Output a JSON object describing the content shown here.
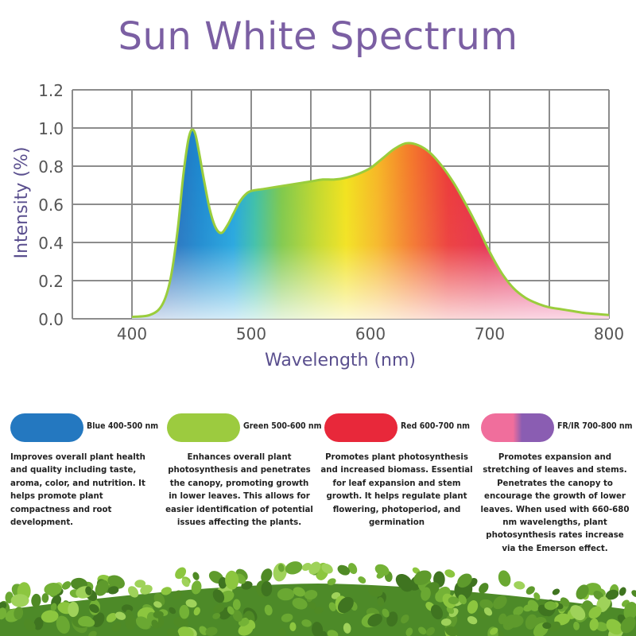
{
  "title": "Sun White Spectrum",
  "chart_data": {
    "type": "area",
    "title": "",
    "xlabel": "Wavelength (nm)",
    "ylabel": "Intensity (%)",
    "xlim": [
      350,
      800
    ],
    "ylim": [
      0,
      1.2
    ],
    "x_ticks": [
      400,
      500,
      600,
      700,
      800
    ],
    "y_ticks": [
      "0.0",
      "0.2",
      "0.4",
      "0.6",
      "0.8",
      "1.0",
      "1.2"
    ],
    "grid": true,
    "fill": "visible-spectrum gradient",
    "line_color": "#9acd3c",
    "series": [
      {
        "x": [
          400,
          415,
          425,
          432,
          438,
          443,
          447,
          450,
          453,
          456,
          460,
          465,
          470,
          475,
          480,
          485,
          490,
          495,
          500,
          510,
          520,
          530,
          540,
          550,
          560,
          570,
          580,
          590,
          600,
          610,
          620,
          630,
          640,
          650,
          660,
          670,
          680,
          690,
          700,
          710,
          720,
          730,
          740,
          750,
          760,
          770,
          780,
          790,
          800
        ],
        "y": [
          0.01,
          0.02,
          0.07,
          0.2,
          0.45,
          0.75,
          0.93,
          0.99,
          0.97,
          0.88,
          0.74,
          0.58,
          0.48,
          0.45,
          0.49,
          0.55,
          0.61,
          0.65,
          0.67,
          0.68,
          0.69,
          0.7,
          0.71,
          0.72,
          0.73,
          0.73,
          0.74,
          0.76,
          0.79,
          0.84,
          0.89,
          0.92,
          0.91,
          0.87,
          0.8,
          0.71,
          0.6,
          0.48,
          0.35,
          0.24,
          0.16,
          0.11,
          0.08,
          0.06,
          0.05,
          0.04,
          0.03,
          0.025,
          0.02
        ]
      }
    ]
  },
  "legend": [
    {
      "label": "Blue 400-500 nm",
      "color": "#2478c0",
      "description": "Improves overall plant health and quality including taste, aroma, color, and nutrition. It helps promote plant compactness and root development."
    },
    {
      "label": "Green 500-600 nm",
      "color": "#9ccb3f",
      "description": "Enhances overall plant photosynthesis and penetrates the canopy, promoting growth in lower leaves. This allows for easier identification of potential issues affecting the plants."
    },
    {
      "label": "Red 600-700 nm",
      "color": "#e8283a",
      "description": "Promotes plant photosynthesis and increased biomass. Essential for leaf expansion and stem growth. It helps regulate plant flowering, photoperiod, and germination"
    },
    {
      "label": "FR/IR 700-800 nm",
      "colors": [
        "#f06e9c",
        "#8a5db2"
      ],
      "description": "Promotes expansion and stretching of leaves and stems. Penetrates the canopy to encourage the growth of lower leaves. When used with 660-680 nm wavelengths, plant photosynthesis rates increase via the Emerson effect."
    }
  ]
}
